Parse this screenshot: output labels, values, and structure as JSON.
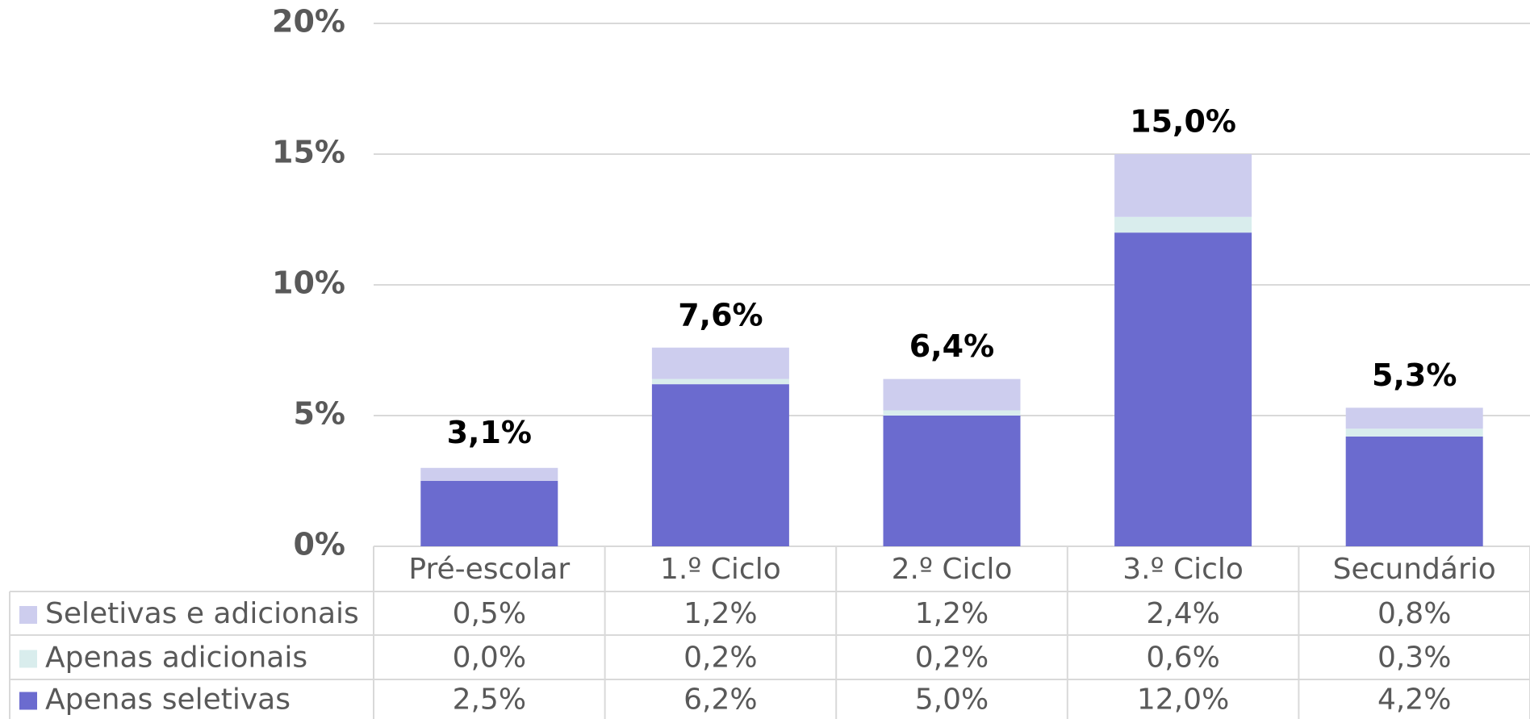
{
  "chart_data": {
    "type": "stacked_bar",
    "categories": [
      "Pré-escolar",
      "1.º Ciclo",
      "2.º Ciclo",
      "3.º Ciclo",
      "Secundário"
    ],
    "series": [
      {
        "name": "Apenas seletivas",
        "color": "#6b6bcf",
        "values": [
          2.5,
          6.2,
          5.0,
          12.0,
          4.2
        ],
        "value_labels": [
          "2,5%",
          "6,2%",
          "5,0%",
          "12,0%",
          "4,2%"
        ]
      },
      {
        "name": "Apenas adicionais",
        "color": "#d9eded",
        "values": [
          0.0,
          0.2,
          0.2,
          0.6,
          0.3
        ],
        "value_labels": [
          "0,0%",
          "0,2%",
          "0,2%",
          "0,6%",
          "0,3%"
        ]
      },
      {
        "name": "Seletivas e adicionais",
        "color": "#cdcdee",
        "values": [
          0.5,
          1.2,
          1.2,
          2.4,
          0.8
        ],
        "value_labels": [
          "0,5%",
          "1,2%",
          "1,2%",
          "2,4%",
          "0,8%"
        ]
      }
    ],
    "totals": [
      3.1,
      7.6,
      6.4,
      15.0,
      5.3
    ],
    "total_labels": [
      "3,1%",
      "7,6%",
      "6,4%",
      "15,0%",
      "5,3%"
    ],
    "ylim": [
      0,
      20
    ],
    "yticks": [
      {
        "value": 0,
        "label": "0%"
      },
      {
        "value": 5,
        "label": "5%"
      },
      {
        "value": 10,
        "label": "10%"
      },
      {
        "value": 15,
        "label": "15%"
      },
      {
        "value": 20,
        "label": "20%"
      }
    ],
    "grid": true,
    "data_table": true
  }
}
